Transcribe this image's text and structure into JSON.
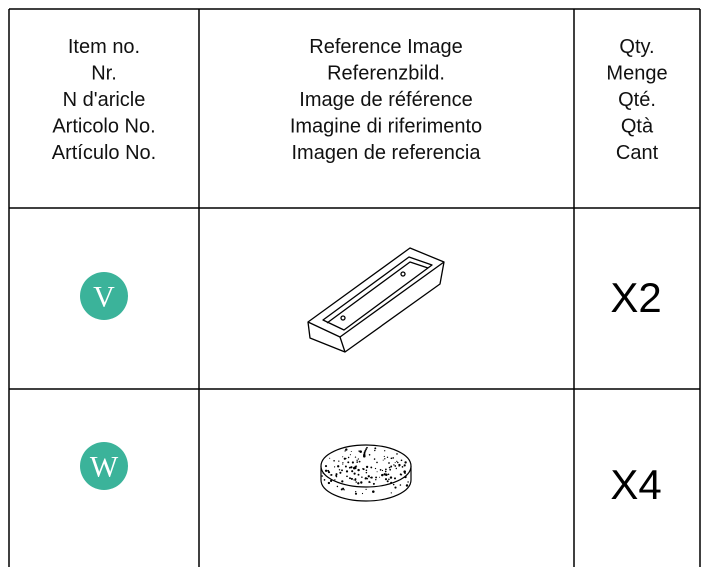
{
  "table": {
    "columns": [
      {
        "lines": [
          "Item no.",
          "Nr.",
          "N d'aricle",
          "Articolo No.",
          "Artículo No."
        ]
      },
      {
        "lines": [
          "Reference Image",
          "Referenzbild.",
          "Image de référence",
          "Imagine di riferimento",
          "Imagen de referencia"
        ]
      },
      {
        "lines": [
          "Qty.",
          "Menge",
          "Qté.",
          "Qtà",
          "Cant"
        ]
      }
    ],
    "rows": [
      {
        "item": "V",
        "qty": "X2"
      },
      {
        "item": "W",
        "qty": "X4"
      }
    ]
  }
}
